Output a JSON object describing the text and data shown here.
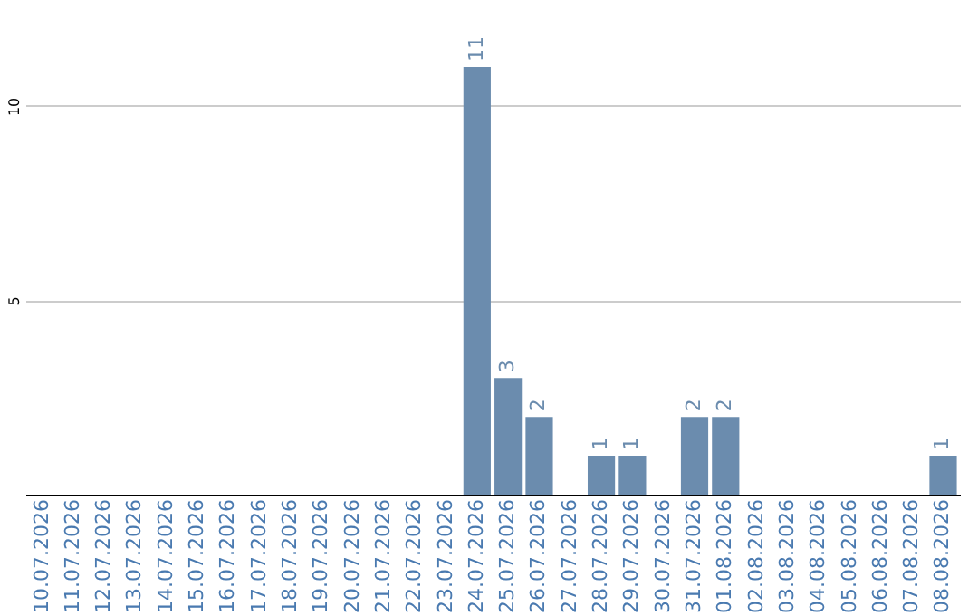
{
  "chart_data": {
    "type": "bar",
    "categories": [
      "10.07.2026",
      "11.07.2026",
      "12.07.2026",
      "13.07.2026",
      "14.07.2026",
      "15.07.2026",
      "16.07.2026",
      "17.07.2026",
      "18.07.2026",
      "19.07.2026",
      "20.07.2026",
      "21.07.2026",
      "22.07.2026",
      "23.07.2026",
      "24.07.2026",
      "25.07.2026",
      "26.07.2026",
      "27.07.2026",
      "28.07.2026",
      "29.07.2026",
      "30.07.2026",
      "31.07.2026",
      "01.08.2026",
      "02.08.2026",
      "03.08.2026",
      "04.08.2026",
      "05.08.2026",
      "06.08.2026",
      "07.08.2026",
      "08.08.2026"
    ],
    "values": [
      0,
      0,
      0,
      0,
      0,
      0,
      0,
      0,
      0,
      0,
      0,
      0,
      0,
      0,
      11,
      3,
      2,
      0,
      1,
      1,
      0,
      2,
      2,
      0,
      0,
      0,
      0,
      0,
      0,
      1
    ],
    "value_labels": [
      null,
      null,
      null,
      null,
      null,
      null,
      null,
      null,
      null,
      null,
      null,
      null,
      null,
      null,
      "11",
      "3",
      "2",
      null,
      "1",
      "1",
      null,
      "2",
      "2",
      null,
      null,
      null,
      null,
      null,
      null,
      "1"
    ],
    "color": "#6b8cae",
    "ylim": [
      0,
      11
    ],
    "yticks": [
      5,
      10
    ],
    "grid": "y"
  }
}
